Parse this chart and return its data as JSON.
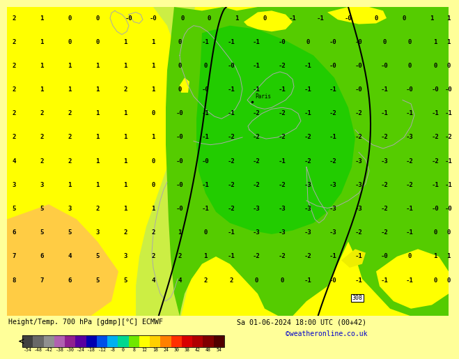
{
  "title_left": "Height/Temp. 700 hPa [gdmp][°C] ECMWF",
  "title_right": "Sa 01-06-2024 18:00 UTC (00+42)",
  "copyright": "©weatheronline.co.uk",
  "city_label": "Paris",
  "colorbar_ticks": [
    -54,
    -48,
    -42,
    -38,
    -30,
    -24,
    -18,
    -12,
    -8,
    0,
    8,
    12,
    18,
    24,
    30,
    38,
    42,
    48,
    54
  ],
  "colorbar_colors": [
    "#404040",
    "#686868",
    "#909090",
    "#b060b0",
    "#902090",
    "#5800a0",
    "#0000b0",
    "#0050e8",
    "#00b0f0",
    "#00d890",
    "#70e800",
    "#ffff00",
    "#ffd000",
    "#ff8000",
    "#ff3000",
    "#d80000",
    "#b00000",
    "#800000",
    "#500000"
  ],
  "map_yellow": "#ffff00",
  "map_light_green": "#80ff00",
  "map_dark_green": "#00dd00",
  "map_orange_yellow": "#ffcc00",
  "contour_color": "#000000",
  "border_color": "#aaaaaa",
  "number_color": "#000000",
  "bottom_bg": "#ffff00",
  "fig_bg": "#ffff99"
}
